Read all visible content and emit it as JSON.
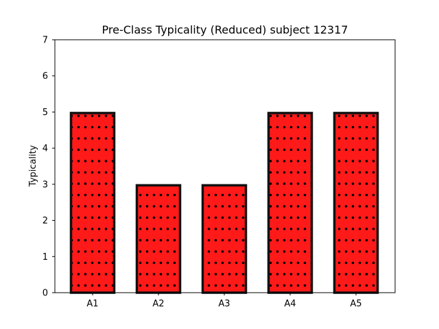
{
  "chart_data": {
    "type": "bar",
    "title": "Pre-Class Typicality (Reduced) subject 12317",
    "xlabel": "",
    "ylabel": "Typicality",
    "categories": [
      "A1",
      "A2",
      "A3",
      "A4",
      "A5"
    ],
    "values": [
      5,
      3,
      3,
      5,
      5
    ],
    "ylim": [
      0,
      7
    ],
    "yticks": [
      "0",
      "1",
      "2",
      "3",
      "4",
      "5",
      "6",
      "7"
    ],
    "grid": false,
    "legend": "none",
    "colors": {
      "bar_fill": "#ff1a1a",
      "bar_edge": "#111111",
      "hatch_dot": "#000000"
    }
  }
}
